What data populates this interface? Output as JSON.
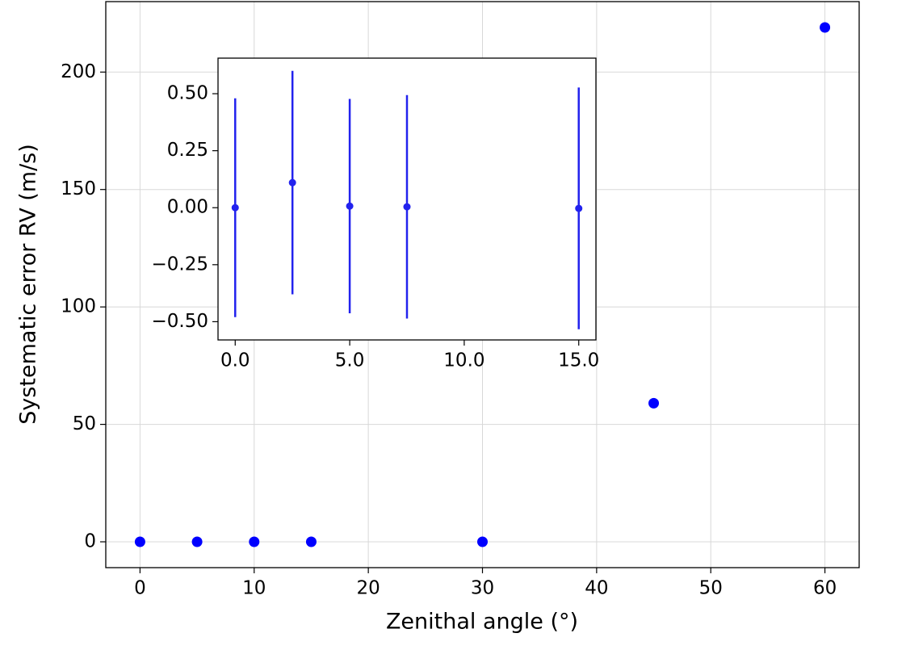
{
  "chart_data": [
    {
      "type": "scatter",
      "xlabel": "Zenithal angle (°)",
      "ylabel": "Systematic error RV (m/s)",
      "x": [
        0,
        5,
        10,
        15,
        30,
        45,
        60
      ],
      "y": [
        0,
        0,
        0,
        0,
        0,
        59,
        219
      ],
      "color": "#0000ff",
      "xlim": [
        -3,
        63
      ],
      "ylim": [
        -11,
        230
      ],
      "xticks": [
        0,
        10,
        20,
        30,
        40,
        50,
        60
      ],
      "yticks": [
        0,
        50,
        100,
        150,
        200
      ],
      "grid": true
    },
    {
      "type": "errorbar",
      "x": [
        0,
        2.5,
        5,
        7.5,
        15
      ],
      "y": [
        0,
        0.11,
        0.007,
        0.004,
        -0.003
      ],
      "yerr": [
        0.48,
        0.49,
        0.47,
        0.49,
        0.53
      ],
      "color": "#2222ee",
      "xlim": [
        -0.75,
        15.75
      ],
      "ylim": [
        -0.58,
        0.656
      ],
      "xticks": [
        {
          "value": 0,
          "label": "0.0"
        },
        {
          "value": 5,
          "label": "5.0"
        },
        {
          "value": 10,
          "label": "10.0"
        },
        {
          "value": 15,
          "label": "15.0"
        }
      ],
      "yticks": [
        {
          "value": -0.5,
          "label": "−0.50"
        },
        {
          "value": -0.25,
          "label": "−0.25"
        },
        {
          "value": 0,
          "label": "0.00"
        },
        {
          "value": 0.25,
          "label": "0.25"
        },
        {
          "value": 0.5,
          "label": "0.50"
        }
      ],
      "grid": false
    }
  ]
}
